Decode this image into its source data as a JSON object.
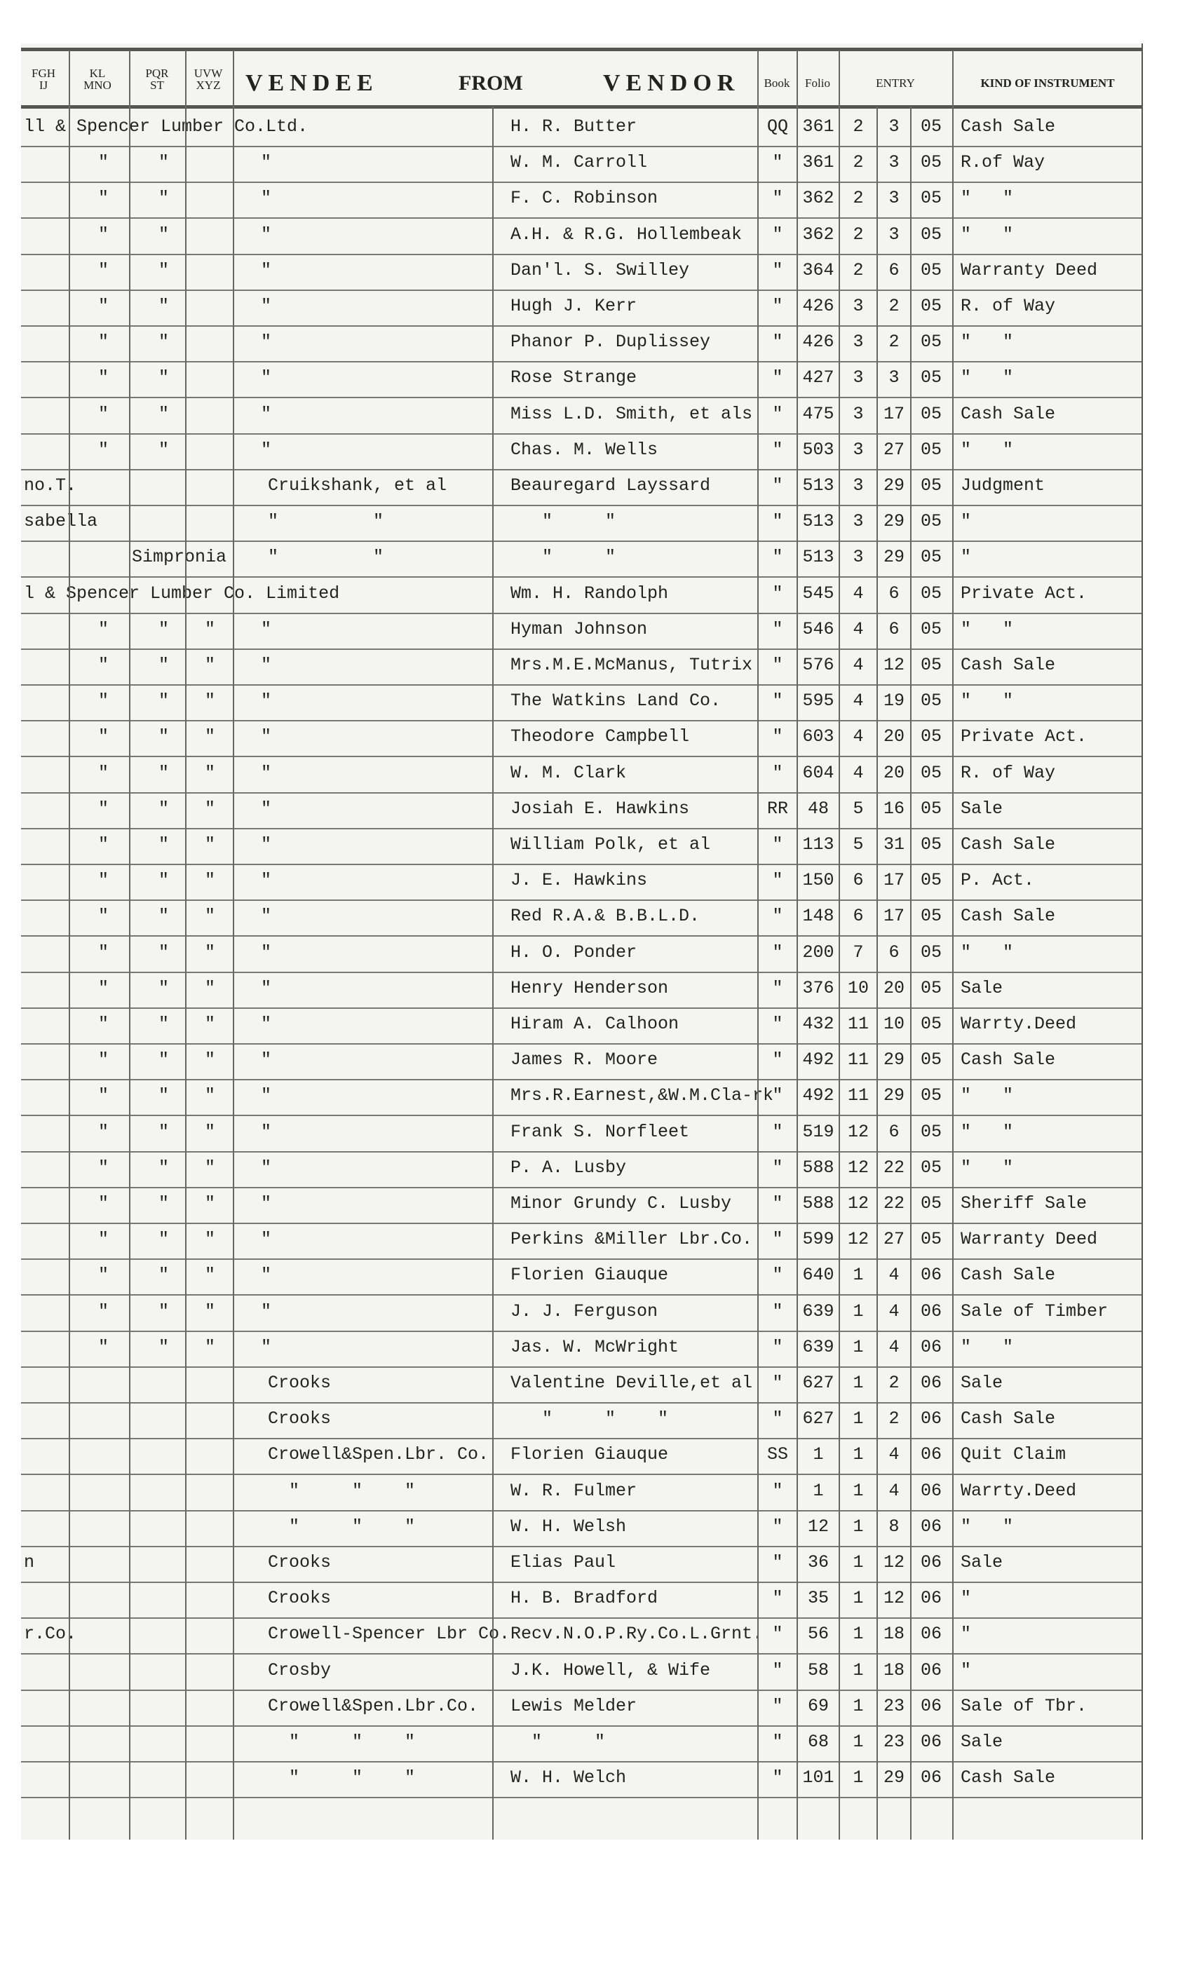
{
  "header": {
    "col_fghij": "FGH\nIJ",
    "col_klmno": "KL\nMNO",
    "col_pqrst": "PQR\nST",
    "col_uvwxyz": "UVW\nXYZ",
    "vendee": "VENDEE",
    "from": "FROM",
    "vendor": "VENDOR",
    "book": "Book",
    "folio": "Folio",
    "entry": "ENTRY",
    "kind": "KIND OF INSTRUMENT"
  },
  "rows": [
    {
      "lead": "ll & Spencer Lumber Co.Ltd.",
      "lead_col": 0,
      "c2": "",
      "c3": "",
      "c4": "",
      "vendee": "",
      "vendor": "H. R. Butter",
      "book": "QQ",
      "folio": "361",
      "m": "2",
      "d": "3",
      "y": "05",
      "kind": "Cash Sale"
    },
    {
      "lead": "",
      "lead_col": 0,
      "c2": "\"",
      "c3": "\"",
      "c4": "",
      "vendee": "\"",
      "vendor": "W. M. Carroll",
      "book": "\"",
      "folio": "361",
      "m": "2",
      "d": "3",
      "y": "05",
      "kind": "R.of Way"
    },
    {
      "lead": "",
      "lead_col": 0,
      "c2": "\"",
      "c3": "\"",
      "c4": "",
      "vendee": "\"",
      "vendor": "F. C. Robinson",
      "book": "\"",
      "folio": "362",
      "m": "2",
      "d": "3",
      "y": "05",
      "kind": "\"   \""
    },
    {
      "lead": "",
      "lead_col": 0,
      "c2": "\"",
      "c3": "\"",
      "c4": "",
      "vendee": "\"",
      "vendor": "A.H. & R.G. Hollembeak",
      "book": "\"",
      "folio": "362",
      "m": "2",
      "d": "3",
      "y": "05",
      "kind": "\"   \""
    },
    {
      "lead": "",
      "lead_col": 0,
      "c2": "\"",
      "c3": "\"",
      "c4": "",
      "vendee": "\"",
      "vendor": "Dan'l. S. Swilley",
      "book": "\"",
      "folio": "364",
      "m": "2",
      "d": "6",
      "y": "05",
      "kind": "Warranty Deed"
    },
    {
      "lead": "",
      "lead_col": 0,
      "c2": "\"",
      "c3": "\"",
      "c4": "",
      "vendee": "\"",
      "vendor": "Hugh J. Kerr",
      "book": "\"",
      "folio": "426",
      "m": "3",
      "d": "2",
      "y": "05",
      "kind": "R. of Way"
    },
    {
      "lead": "",
      "lead_col": 0,
      "c2": "\"",
      "c3": "\"",
      "c4": "",
      "vendee": "\"",
      "vendor": "Phanor P. Duplissey",
      "book": "\"",
      "folio": "426",
      "m": "3",
      "d": "2",
      "y": "05",
      "kind": "\"   \""
    },
    {
      "lead": "",
      "lead_col": 0,
      "c2": "\"",
      "c3": "\"",
      "c4": "",
      "vendee": "\"",
      "vendor": "Rose Strange",
      "book": "\"",
      "folio": "427",
      "m": "3",
      "d": "3",
      "y": "05",
      "kind": "\"   \""
    },
    {
      "lead": "",
      "lead_col": 0,
      "c2": "\"",
      "c3": "\"",
      "c4": "",
      "vendee": "\"",
      "vendor": "Miss L.D. Smith, et als",
      "book": "\"",
      "folio": "475",
      "m": "3",
      "d": "17",
      "y": "05",
      "kind": "Cash Sale"
    },
    {
      "lead": "",
      "lead_col": 0,
      "c2": "\"",
      "c3": "\"",
      "c4": "",
      "vendee": "\"",
      "vendor": "Chas. M. Wells",
      "book": "\"",
      "folio": "503",
      "m": "3",
      "d": "27",
      "y": "05",
      "kind": "\"   \""
    },
    {
      "lead": "no.T.",
      "lead_col": 0,
      "c2": "",
      "c3": "",
      "c4": "",
      "vendee": "Cruikshank, et al",
      "vendor": "Beauregard Layssard",
      "book": "\"",
      "folio": "513",
      "m": "3",
      "d": "29",
      "y": "05",
      "kind": "Judgment"
    },
    {
      "lead": "sabella",
      "lead_col": 0,
      "c2": "",
      "c3": "",
      "c4": "",
      "vendee": "\"         \"",
      "vendor": "   \"     \"",
      "book": "\"",
      "folio": "513",
      "m": "3",
      "d": "29",
      "y": "05",
      "kind": "\""
    },
    {
      "lead": "Simpronia",
      "lead_col": 2,
      "c2": "",
      "c3": "",
      "c4": "",
      "vendee": "\"         \"",
      "vendor": "   \"     \"",
      "book": "\"",
      "folio": "513",
      "m": "3",
      "d": "29",
      "y": "05",
      "kind": "\""
    },
    {
      "lead": "l & Spencer Lumber Co. Limited",
      "lead_col": 0,
      "c2": "",
      "c3": "",
      "c4": "",
      "vendee": "",
      "vendor": "Wm. H. Randolph",
      "book": "\"",
      "folio": "545",
      "m": "4",
      "d": "6",
      "y": "05",
      "kind": "Private Act."
    },
    {
      "lead": "",
      "lead_col": 0,
      "c2": "\"",
      "c3": "\"",
      "c4": "\"",
      "vendee": "\"",
      "vendor": "Hyman Johnson",
      "book": "\"",
      "folio": "546",
      "m": "4",
      "d": "6",
      "y": "05",
      "kind": "\"   \""
    },
    {
      "lead": "",
      "lead_col": 0,
      "c2": "\"",
      "c3": "\"",
      "c4": "\"",
      "vendee": "\"",
      "vendor": "Mrs.M.E.McManus, Tutrix",
      "book": "\"",
      "folio": "576",
      "m": "4",
      "d": "12",
      "y": "05",
      "kind": "Cash Sale"
    },
    {
      "lead": "",
      "lead_col": 0,
      "c2": "\"",
      "c3": "\"",
      "c4": "\"",
      "vendee": "\"",
      "vendor": "The Watkins Land Co.",
      "book": "\"",
      "folio": "595",
      "m": "4",
      "d": "19",
      "y": "05",
      "kind": "\"   \""
    },
    {
      "lead": "",
      "lead_col": 0,
      "c2": "\"",
      "c3": "\"",
      "c4": "\"",
      "vendee": "\"",
      "vendor": "Theodore Campbell",
      "book": "\"",
      "folio": "603",
      "m": "4",
      "d": "20",
      "y": "05",
      "kind": "Private Act."
    },
    {
      "lead": "",
      "lead_col": 0,
      "c2": "\"",
      "c3": "\"",
      "c4": "\"",
      "vendee": "\"",
      "vendor": "W. M. Clark",
      "book": "\"",
      "folio": "604",
      "m": "4",
      "d": "20",
      "y": "05",
      "kind": "R. of Way"
    },
    {
      "lead": "",
      "lead_col": 0,
      "c2": "\"",
      "c3": "\"",
      "c4": "\"",
      "vendee": "\"",
      "vendor": "Josiah E. Hawkins",
      "book": "RR",
      "folio": "48",
      "m": "5",
      "d": "16",
      "y": "05",
      "kind": "Sale"
    },
    {
      "lead": "",
      "lead_col": 0,
      "c2": "\"",
      "c3": "\"",
      "c4": "\"",
      "vendee": "\"",
      "vendor": "William Polk, et al",
      "book": "\"",
      "folio": "113",
      "m": "5",
      "d": "31",
      "y": "05",
      "kind": "Cash Sale"
    },
    {
      "lead": "",
      "lead_col": 0,
      "c2": "\"",
      "c3": "\"",
      "c4": "\"",
      "vendee": "\"",
      "vendor": "J. E. Hawkins",
      "book": "\"",
      "folio": "150",
      "m": "6",
      "d": "17",
      "y": "05",
      "kind": "P. Act."
    },
    {
      "lead": "",
      "lead_col": 0,
      "c2": "\"",
      "c3": "\"",
      "c4": "\"",
      "vendee": "\"",
      "vendor": "Red R.A.& B.B.L.D.",
      "book": "\"",
      "folio": "148",
      "m": "6",
      "d": "17",
      "y": "05",
      "kind": "Cash Sale"
    },
    {
      "lead": "",
      "lead_col": 0,
      "c2": "\"",
      "c3": "\"",
      "c4": "\"",
      "vendee": "\"",
      "vendor": "H. O. Ponder",
      "book": "\"",
      "folio": "200",
      "m": "7",
      "d": "6",
      "y": "05",
      "kind": "\"   \""
    },
    {
      "lead": "",
      "lead_col": 0,
      "c2": "\"",
      "c3": "\"",
      "c4": "\"",
      "vendee": "\"",
      "vendor": "Henry Henderson",
      "book": "\"",
      "folio": "376",
      "m": "10",
      "d": "20",
      "y": "05",
      "kind": "Sale"
    },
    {
      "lead": "",
      "lead_col": 0,
      "c2": "\"",
      "c3": "\"",
      "c4": "\"",
      "vendee": "\"",
      "vendor": "Hiram A. Calhoon",
      "book": "\"",
      "folio": "432",
      "m": "11",
      "d": "10",
      "y": "05",
      "kind": "Warrty.Deed"
    },
    {
      "lead": "",
      "lead_col": 0,
      "c2": "\"",
      "c3": "\"",
      "c4": "\"",
      "vendee": "\"",
      "vendor": "James R. Moore",
      "book": "\"",
      "folio": "492",
      "m": "11",
      "d": "29",
      "y": "05",
      "kind": "Cash Sale"
    },
    {
      "lead": "",
      "lead_col": 0,
      "c2": "\"",
      "c3": "\"",
      "c4": "\"",
      "vendee": "\"",
      "vendor": "Mrs.R.Earnest,&W.M.Cla-rk",
      "book": "\"",
      "folio": "492",
      "m": "11",
      "d": "29",
      "y": "05",
      "kind": "\"   \""
    },
    {
      "lead": "",
      "lead_col": 0,
      "c2": "\"",
      "c3": "\"",
      "c4": "\"",
      "vendee": "\"",
      "vendor": "Frank S. Norfleet",
      "book": "\"",
      "folio": "519",
      "m": "12",
      "d": "6",
      "y": "05",
      "kind": "\"   \""
    },
    {
      "lead": "",
      "lead_col": 0,
      "c2": "\"",
      "c3": "\"",
      "c4": "\"",
      "vendee": "\"",
      "vendor": "P. A. Lusby",
      "book": "\"",
      "folio": "588",
      "m": "12",
      "d": "22",
      "y": "05",
      "kind": "\"   \""
    },
    {
      "lead": "",
      "lead_col": 0,
      "c2": "\"",
      "c3": "\"",
      "c4": "\"",
      "vendee": "\"",
      "vendor": "Minor Grundy C. Lusby",
      "book": "\"",
      "folio": "588",
      "m": "12",
      "d": "22",
      "y": "05",
      "kind": "Sheriff Sale"
    },
    {
      "lead": "",
      "lead_col": 0,
      "c2": "\"",
      "c3": "\"",
      "c4": "\"",
      "vendee": "\"",
      "vendor": "Perkins &Miller Lbr.Co.",
      "book": "\"",
      "folio": "599",
      "m": "12",
      "d": "27",
      "y": "05",
      "kind": "Warranty Deed"
    },
    {
      "lead": "",
      "lead_col": 0,
      "c2": "\"",
      "c3": "\"",
      "c4": "\"",
      "vendee": "\"",
      "vendor": "Florien Giauque",
      "book": "\"",
      "folio": "640",
      "m": "1",
      "d": "4",
      "y": "06",
      "kind": "Cash Sale"
    },
    {
      "lead": "",
      "lead_col": 0,
      "c2": "\"",
      "c3": "\"",
      "c4": "\"",
      "vendee": "\"",
      "vendor": "J. J. Ferguson",
      "book": "\"",
      "folio": "639",
      "m": "1",
      "d": "4",
      "y": "06",
      "kind": "Sale of Timber"
    },
    {
      "lead": "",
      "lead_col": 0,
      "c2": "\"",
      "c3": "\"",
      "c4": "\"",
      "vendee": "\"",
      "vendor": "Jas. W. McWright",
      "book": "\"",
      "folio": "639",
      "m": "1",
      "d": "4",
      "y": "06",
      "kind": "\"   \""
    },
    {
      "lead": "",
      "lead_col": 0,
      "c2": "",
      "c3": "",
      "c4": "",
      "vendee": "Crooks",
      "vendor": "Valentine Deville,et al",
      "book": "\"",
      "folio": "627",
      "m": "1",
      "d": "2",
      "y": "06",
      "kind": "Sale"
    },
    {
      "lead": "",
      "lead_col": 0,
      "c2": "",
      "c3": "",
      "c4": "",
      "vendee": "Crooks",
      "vendor": "   \"     \"    \"",
      "book": "\"",
      "folio": "627",
      "m": "1",
      "d": "2",
      "y": "06",
      "kind": "Cash Sale"
    },
    {
      "lead": "",
      "lead_col": 0,
      "c2": "",
      "c3": "",
      "c4": "",
      "vendee": "Crowell&Spen.Lbr. Co.",
      "vendor": "Florien Giauque",
      "book": "SS",
      "folio": "1",
      "m": "1",
      "d": "4",
      "y": "06",
      "kind": "Quit Claim"
    },
    {
      "lead": "",
      "lead_col": 0,
      "c2": "",
      "c3": "",
      "c4": "",
      "vendee": "  \"     \"    \"",
      "vendor": "W. R. Fulmer",
      "book": "\"",
      "folio": "1",
      "m": "1",
      "d": "4",
      "y": "06",
      "kind": "Warrty.Deed"
    },
    {
      "lead": "",
      "lead_col": 0,
      "c2": "",
      "c3": "",
      "c4": "",
      "vendee": "  \"     \"    \"",
      "vendor": "W. H. Welsh",
      "book": "\"",
      "folio": "12",
      "m": "1",
      "d": "8",
      "y": "06",
      "kind": "\"   \""
    },
    {
      "lead": "n",
      "lead_col": 0,
      "c2": "",
      "c3": "",
      "c4": "",
      "vendee": "Crooks",
      "vendor": "Elias Paul",
      "book": "\"",
      "folio": "36",
      "m": "1",
      "d": "12",
      "y": "06",
      "kind": "Sale"
    },
    {
      "lead": "",
      "lead_col": 0,
      "c2": "",
      "c3": "",
      "c4": "",
      "vendee": "Crooks",
      "vendor": "H. B. Bradford",
      "book": "\"",
      "folio": "35",
      "m": "1",
      "d": "12",
      "y": "06",
      "kind": "\""
    },
    {
      "lead": "r.Co.",
      "lead_col": 0,
      "c2": "",
      "c3": "",
      "c4": "",
      "vendee": "Crowell-Spencer Lbr Co.",
      "vendor": "Recv.N.O.P.Ry.Co.L.Grnt.",
      "book": "\"",
      "folio": "56",
      "m": "1",
      "d": "18",
      "y": "06",
      "kind": "\""
    },
    {
      "lead": "",
      "lead_col": 0,
      "c2": "",
      "c3": "",
      "c4": "",
      "vendee": "Crosby",
      "vendor": "J.K. Howell, & Wife",
      "book": "\"",
      "folio": "58",
      "m": "1",
      "d": "18",
      "y": "06",
      "kind": "\""
    },
    {
      "lead": "",
      "lead_col": 0,
      "c2": "",
      "c3": "",
      "c4": "",
      "vendee": "Crowell&Spen.Lbr.Co.",
      "vendor": "Lewis Melder",
      "book": "\"",
      "folio": "69",
      "m": "1",
      "d": "23",
      "y": "06",
      "kind": "Sale of Tbr."
    },
    {
      "lead": "",
      "lead_col": 0,
      "c2": "",
      "c3": "",
      "c4": "",
      "vendee": "  \"     \"    \"",
      "vendor": "  \"     \"",
      "book": "\"",
      "folio": "68",
      "m": "1",
      "d": "23",
      "y": "06",
      "kind": "Sale"
    },
    {
      "lead": "",
      "lead_col": 0,
      "c2": "",
      "c3": "",
      "c4": "",
      "vendee": "  \"     \"    \"",
      "vendor": "W. H. Welch",
      "book": "\"",
      "folio": "101",
      "m": "1",
      "d": "29",
      "y": "06",
      "kind": "Cash Sale"
    }
  ]
}
